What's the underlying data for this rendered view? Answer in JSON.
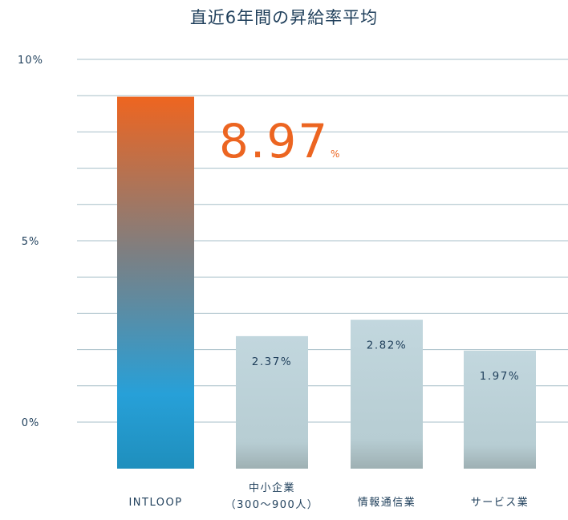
{
  "chart_data": {
    "type": "bar",
    "title": "直近6年間の昇給率平均",
    "categories": [
      "INTLOOP",
      "中小企業\n（300〜900人）",
      "情報通信業",
      "サービス業"
    ],
    "values": [
      8.97,
      2.37,
      2.82,
      1.97
    ],
    "value_labels": [
      "8.97",
      "2.37%",
      "2.82%",
      "1.97%"
    ],
    "highlight_unit": "%",
    "y_ticks": [
      "10%",
      "5%",
      "0%"
    ],
    "ylim": [
      0,
      10
    ],
    "grid": true,
    "colors": {
      "highlight_top": "#ee6520",
      "highlight_bottom": "#229ed6",
      "others_top": "#bfd5dc",
      "others_bottom": "#9fb2b4",
      "value_highlight": "#ec6521",
      "grid": "#a7bfc8",
      "text": "#1f3f5b"
    }
  }
}
